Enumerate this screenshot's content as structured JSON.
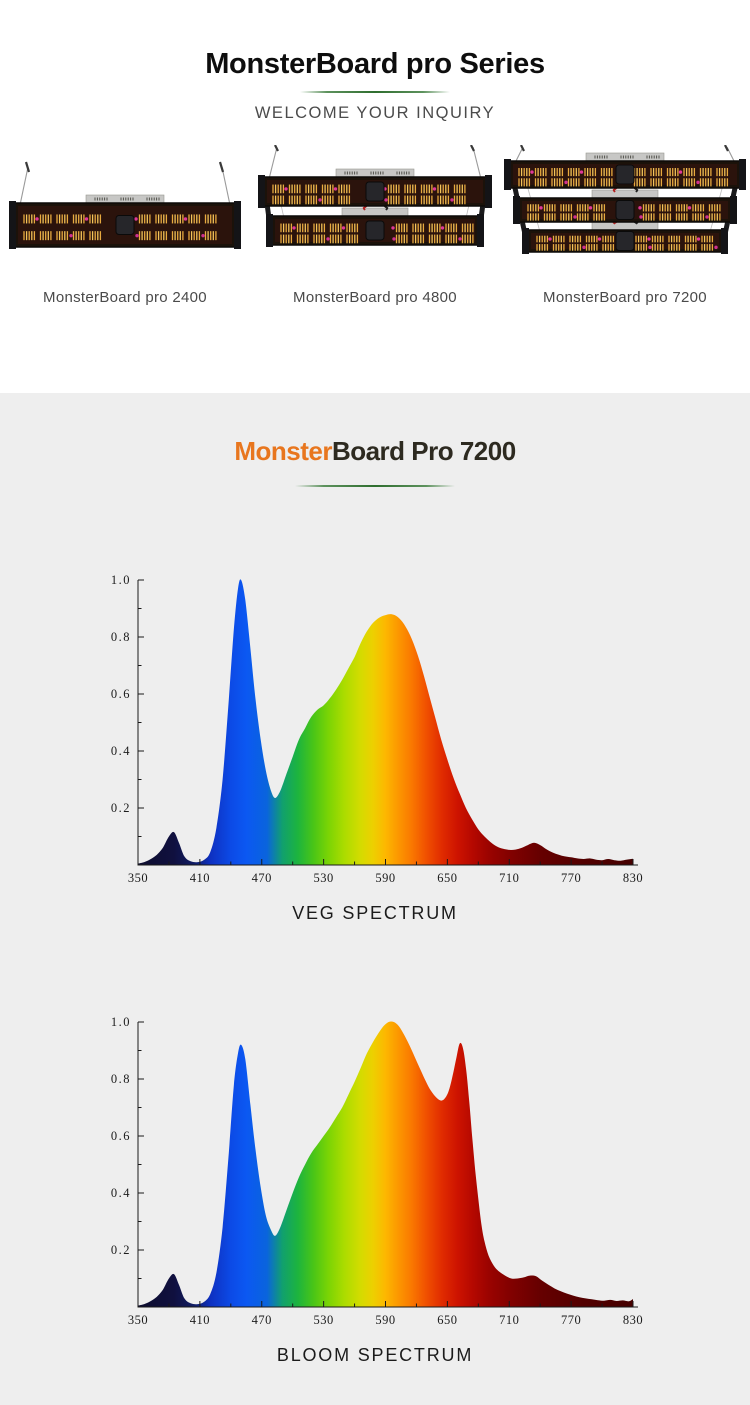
{
  "colors": {
    "hero_bg": "#ffffff",
    "section_bg": "#eeeeee",
    "accent_green": "#2f6e2f",
    "logo_orange": "#e8761e",
    "logo_dark": "#2d2a20",
    "text_gray": "#4a4a4a",
    "axis_color": "#1a1a1a"
  },
  "hero": {
    "title": "MonsterBoard pro Series",
    "subtitle": "WELCOME YOUR INQUIRY",
    "products": [
      {
        "name": "MonsterBoard pro 2400",
        "bars": 1
      },
      {
        "name": "MonsterBoard pro 4800",
        "bars": 2
      },
      {
        "name": "MonsterBoard pro 7200",
        "bars": 3
      }
    ]
  },
  "spectra": {
    "logo_part1": "Monster",
    "logo_part2": "Board Pro 7200"
  },
  "spectrum_gradient": [
    [
      350,
      "#0d0d2e"
    ],
    [
      385,
      "#10103f"
    ],
    [
      405,
      "#101d66"
    ],
    [
      420,
      "#0e30c0"
    ],
    [
      440,
      "#0c4ae6"
    ],
    [
      455,
      "#0b58f2"
    ],
    [
      475,
      "#0a64dd"
    ],
    [
      490,
      "#11a06e"
    ],
    [
      505,
      "#1db43e"
    ],
    [
      520,
      "#49c517"
    ],
    [
      535,
      "#7cd404"
    ],
    [
      550,
      "#abdc00"
    ],
    [
      565,
      "#d2dc00"
    ],
    [
      578,
      "#edd000"
    ],
    [
      590,
      "#fdb700"
    ],
    [
      600,
      "#fc9d00"
    ],
    [
      615,
      "#fa7900"
    ],
    [
      630,
      "#f04f00"
    ],
    [
      645,
      "#e02b00"
    ],
    [
      660,
      "#cd1300"
    ],
    [
      675,
      "#b40800"
    ],
    [
      690,
      "#9b0300"
    ],
    [
      710,
      "#830100"
    ],
    [
      740,
      "#660000"
    ],
    [
      780,
      "#530000"
    ],
    [
      830,
      "#450000"
    ]
  ],
  "chart_data": [
    {
      "type": "area",
      "title": "VEG SPECTRUM",
      "xlim": [
        350,
        830
      ],
      "ylim": [
        0,
        1.0
      ],
      "x_ticks": [
        350,
        410,
        470,
        530,
        590,
        650,
        710,
        770,
        830
      ],
      "y_ticks": [
        0.2,
        0.4,
        0.6,
        0.8,
        1.0
      ],
      "points": [
        [
          350,
          0.005
        ],
        [
          356,
          0.01
        ],
        [
          362,
          0.02
        ],
        [
          368,
          0.035
        ],
        [
          374,
          0.06
        ],
        [
          380,
          0.1
        ],
        [
          385,
          0.115
        ],
        [
          390,
          0.075
        ],
        [
          395,
          0.03
        ],
        [
          401,
          0.013
        ],
        [
          408,
          0.01
        ],
        [
          414,
          0.018
        ],
        [
          420,
          0.045
        ],
        [
          426,
          0.13
        ],
        [
          432,
          0.3
        ],
        [
          438,
          0.58
        ],
        [
          443,
          0.83
        ],
        [
          447,
          0.97
        ],
        [
          450,
          1.0
        ],
        [
          454,
          0.93
        ],
        [
          459,
          0.76
        ],
        [
          464,
          0.58
        ],
        [
          469,
          0.44
        ],
        [
          474,
          0.33
        ],
        [
          479,
          0.26
        ],
        [
          483,
          0.235
        ],
        [
          488,
          0.26
        ],
        [
          494,
          0.32
        ],
        [
          500,
          0.38
        ],
        [
          506,
          0.44
        ],
        [
          512,
          0.48
        ],
        [
          518,
          0.52
        ],
        [
          524,
          0.545
        ],
        [
          530,
          0.56
        ],
        [
          536,
          0.585
        ],
        [
          542,
          0.615
        ],
        [
          548,
          0.65
        ],
        [
          554,
          0.69
        ],
        [
          560,
          0.73
        ],
        [
          566,
          0.78
        ],
        [
          572,
          0.82
        ],
        [
          578,
          0.85
        ],
        [
          584,
          0.868
        ],
        [
          590,
          0.877
        ],
        [
          596,
          0.88
        ],
        [
          602,
          0.87
        ],
        [
          608,
          0.845
        ],
        [
          614,
          0.805
        ],
        [
          620,
          0.75
        ],
        [
          626,
          0.68
        ],
        [
          632,
          0.6
        ],
        [
          638,
          0.52
        ],
        [
          644,
          0.44
        ],
        [
          650,
          0.37
        ],
        [
          656,
          0.305
        ],
        [
          662,
          0.25
        ],
        [
          668,
          0.2
        ],
        [
          674,
          0.16
        ],
        [
          680,
          0.125
        ],
        [
          686,
          0.1
        ],
        [
          692,
          0.08
        ],
        [
          698,
          0.065
        ],
        [
          704,
          0.057
        ],
        [
          710,
          0.053
        ],
        [
          716,
          0.054
        ],
        [
          722,
          0.06
        ],
        [
          728,
          0.07
        ],
        [
          734,
          0.078
        ],
        [
          740,
          0.07
        ],
        [
          746,
          0.055
        ],
        [
          752,
          0.044
        ],
        [
          758,
          0.036
        ],
        [
          764,
          0.03
        ],
        [
          770,
          0.027
        ],
        [
          776,
          0.023
        ],
        [
          782,
          0.021
        ],
        [
          788,
          0.023
        ],
        [
          794,
          0.019
        ],
        [
          800,
          0.017
        ],
        [
          806,
          0.021
        ],
        [
          812,
          0.017
        ],
        [
          818,
          0.015
        ],
        [
          824,
          0.019
        ],
        [
          830,
          0.022
        ]
      ]
    },
    {
      "type": "area",
      "title": "BLOOM SPECTRUM",
      "xlim": [
        350,
        830
      ],
      "ylim": [
        0,
        1.0
      ],
      "x_ticks": [
        350,
        410,
        470,
        530,
        590,
        650,
        710,
        770,
        830
      ],
      "y_ticks": [
        0.2,
        0.4,
        0.6,
        0.8,
        1.0
      ],
      "points": [
        [
          350,
          0.005
        ],
        [
          356,
          0.01
        ],
        [
          362,
          0.02
        ],
        [
          368,
          0.035
        ],
        [
          374,
          0.06
        ],
        [
          380,
          0.1
        ],
        [
          385,
          0.115
        ],
        [
          390,
          0.075
        ],
        [
          395,
          0.03
        ],
        [
          401,
          0.013
        ],
        [
          408,
          0.01
        ],
        [
          414,
          0.018
        ],
        [
          420,
          0.045
        ],
        [
          426,
          0.12
        ],
        [
          432,
          0.28
        ],
        [
          438,
          0.54
        ],
        [
          443,
          0.78
        ],
        [
          447,
          0.89
        ],
        [
          450,
          0.92
        ],
        [
          454,
          0.87
        ],
        [
          459,
          0.71
        ],
        [
          464,
          0.55
        ],
        [
          469,
          0.42
        ],
        [
          474,
          0.32
        ],
        [
          479,
          0.27
        ],
        [
          483,
          0.25
        ],
        [
          488,
          0.28
        ],
        [
          494,
          0.34
        ],
        [
          500,
          0.4
        ],
        [
          506,
          0.455
        ],
        [
          512,
          0.5
        ],
        [
          518,
          0.54
        ],
        [
          524,
          0.57
        ],
        [
          530,
          0.6
        ],
        [
          536,
          0.63
        ],
        [
          542,
          0.665
        ],
        [
          548,
          0.7
        ],
        [
          554,
          0.745
        ],
        [
          560,
          0.79
        ],
        [
          566,
          0.84
        ],
        [
          572,
          0.89
        ],
        [
          578,
          0.93
        ],
        [
          583,
          0.96
        ],
        [
          588,
          0.985
        ],
        [
          593,
          1.0
        ],
        [
          598,
          1.0
        ],
        [
          603,
          0.985
        ],
        [
          608,
          0.955
        ],
        [
          613,
          0.92
        ],
        [
          618,
          0.88
        ],
        [
          623,
          0.84
        ],
        [
          628,
          0.8
        ],
        [
          633,
          0.765
        ],
        [
          638,
          0.74
        ],
        [
          643,
          0.725
        ],
        [
          647,
          0.73
        ],
        [
          651,
          0.755
        ],
        [
          655,
          0.81
        ],
        [
          659,
          0.88
        ],
        [
          662,
          0.925
        ],
        [
          665,
          0.91
        ],
        [
          668,
          0.84
        ],
        [
          671,
          0.73
        ],
        [
          674,
          0.6
        ],
        [
          677,
          0.48
        ],
        [
          680,
          0.38
        ],
        [
          683,
          0.29
        ],
        [
          686,
          0.23
        ],
        [
          690,
          0.18
        ],
        [
          695,
          0.145
        ],
        [
          700,
          0.125
        ],
        [
          706,
          0.11
        ],
        [
          712,
          0.1
        ],
        [
          718,
          0.1
        ],
        [
          724,
          0.104
        ],
        [
          730,
          0.11
        ],
        [
          736,
          0.108
        ],
        [
          742,
          0.092
        ],
        [
          748,
          0.078
        ],
        [
          754,
          0.065
        ],
        [
          760,
          0.055
        ],
        [
          766,
          0.047
        ],
        [
          772,
          0.04
        ],
        [
          778,
          0.034
        ],
        [
          784,
          0.03
        ],
        [
          790,
          0.027
        ],
        [
          796,
          0.024
        ],
        [
          802,
          0.022
        ],
        [
          808,
          0.025
        ],
        [
          814,
          0.021
        ],
        [
          820,
          0.023
        ],
        [
          826,
          0.02
        ],
        [
          830,
          0.028
        ]
      ]
    }
  ]
}
